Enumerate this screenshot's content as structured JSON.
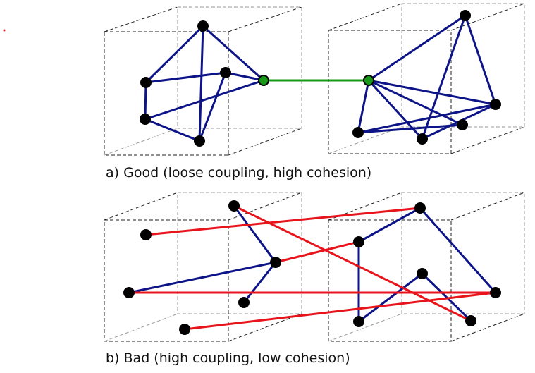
{
  "captions": {
    "good": "a) Good (loose coupling, high cohesion)",
    "bad": "b) Bad (high coupling, low cohesion)"
  },
  "colors": {
    "intra_edge": "#0d1487",
    "coupling_good": "#189a18",
    "coupling_bad": "#e8141c",
    "node": "#000000",
    "interface_node": "#189a18"
  }
}
